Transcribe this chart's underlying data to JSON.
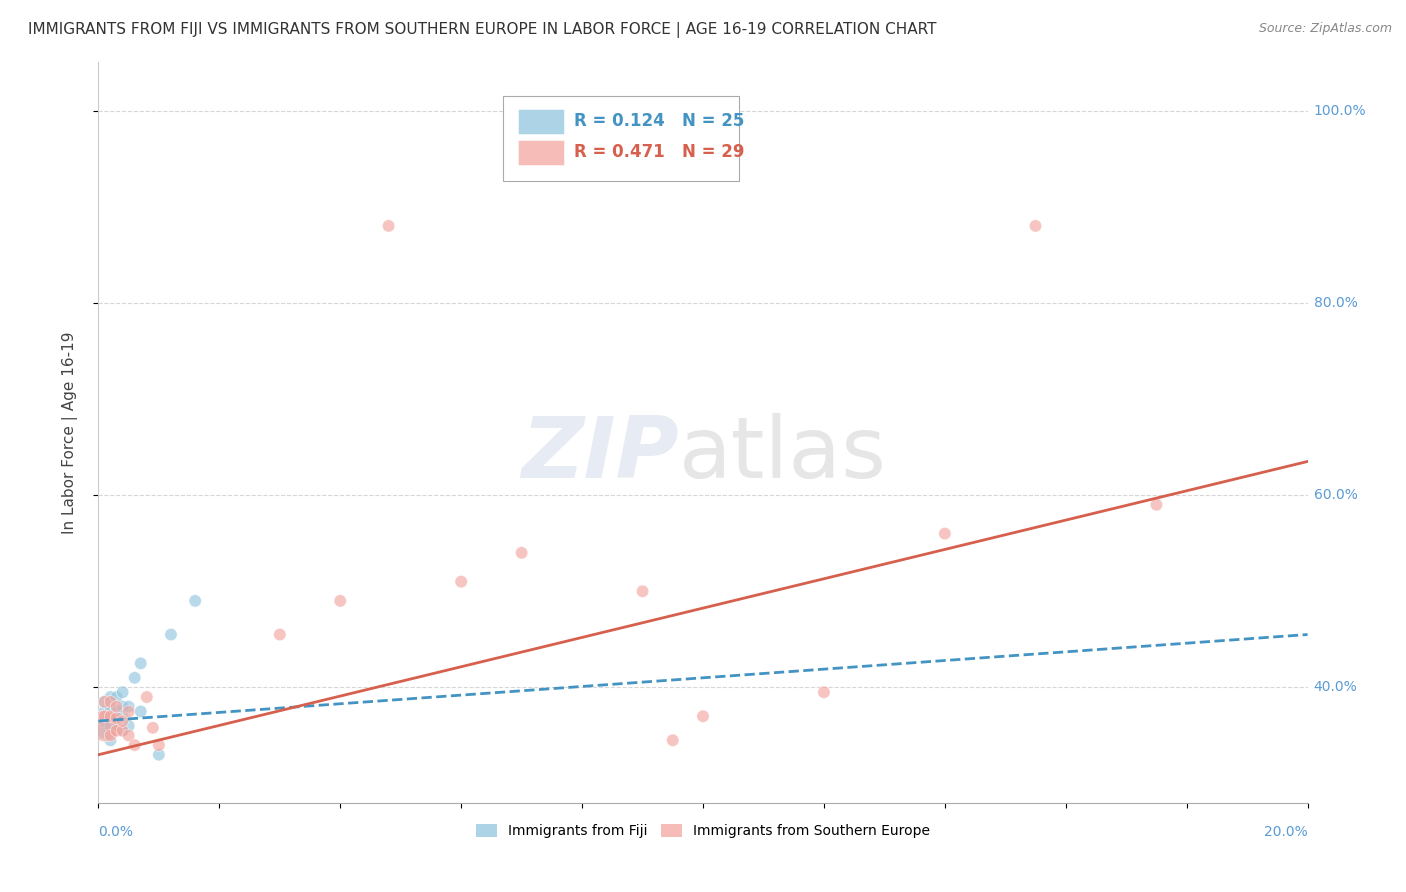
{
  "title": "IMMIGRANTS FROM FIJI VS IMMIGRANTS FROM SOUTHERN EUROPE IN LABOR FORCE | AGE 16-19 CORRELATION CHART",
  "source": "Source: ZipAtlas.com",
  "ylabel": "In Labor Force | Age 16-19",
  "xlim": [
    0.0,
    0.2
  ],
  "ylim": [
    0.28,
    1.05
  ],
  "fiji_R": 0.124,
  "fiji_N": 25,
  "seurope_R": 0.471,
  "seurope_N": 29,
  "fiji_color": "#92c5de",
  "seurope_color": "#f4a6a0",
  "fiji_line_color": "#4393c3",
  "seurope_line_color": "#d6604d",
  "background_color": "#ffffff",
  "grid_color": "#cccccc",
  "title_fontsize": 11,
  "axis_label_fontsize": 11,
  "tick_fontsize": 10,
  "legend_fontsize": 12,
  "fiji_x": [
    0.001,
    0.001,
    0.001,
    0.001,
    0.002,
    0.002,
    0.002,
    0.002,
    0.002,
    0.003,
    0.003,
    0.003,
    0.003,
    0.004,
    0.004,
    0.004,
    0.004,
    0.005,
    0.005,
    0.006,
    0.007,
    0.007,
    0.01,
    0.012,
    0.016
  ],
  "fiji_y": [
    0.355,
    0.365,
    0.375,
    0.385,
    0.345,
    0.36,
    0.37,
    0.38,
    0.39,
    0.355,
    0.365,
    0.375,
    0.39,
    0.355,
    0.37,
    0.38,
    0.395,
    0.36,
    0.38,
    0.41,
    0.425,
    0.375,
    0.33,
    0.455,
    0.49
  ],
  "fiji_sizes": [
    150,
    80,
    80,
    80,
    80,
    80,
    80,
    80,
    80,
    80,
    80,
    80,
    80,
    80,
    80,
    80,
    80,
    80,
    80,
    80,
    80,
    80,
    80,
    80,
    80
  ],
  "seurope_x": [
    0.001,
    0.001,
    0.001,
    0.002,
    0.002,
    0.002,
    0.003,
    0.003,
    0.003,
    0.004,
    0.004,
    0.005,
    0.005,
    0.006,
    0.008,
    0.009,
    0.01,
    0.03,
    0.04,
    0.048,
    0.06,
    0.07,
    0.09,
    0.095,
    0.1,
    0.12,
    0.14,
    0.155,
    0.175
  ],
  "seurope_y": [
    0.36,
    0.37,
    0.385,
    0.35,
    0.37,
    0.385,
    0.355,
    0.368,
    0.38,
    0.355,
    0.365,
    0.35,
    0.375,
    0.34,
    0.39,
    0.358,
    0.34,
    0.455,
    0.49,
    0.88,
    0.51,
    0.54,
    0.5,
    0.345,
    0.37,
    0.395,
    0.56,
    0.88,
    0.59
  ],
  "seurope_sizes": [
    500,
    80,
    80,
    80,
    80,
    80,
    80,
    80,
    80,
    80,
    80,
    80,
    80,
    80,
    80,
    80,
    80,
    80,
    80,
    80,
    80,
    80,
    80,
    80,
    80,
    80,
    80,
    80,
    80
  ],
  "fiji_line_x0": 0.0,
  "fiji_line_x1": 0.2,
  "fiji_line_y0": 0.365,
  "fiji_line_y1": 0.455,
  "se_line_x0": 0.0,
  "se_line_x1": 0.2,
  "se_line_y0": 0.33,
  "se_line_y1": 0.635
}
